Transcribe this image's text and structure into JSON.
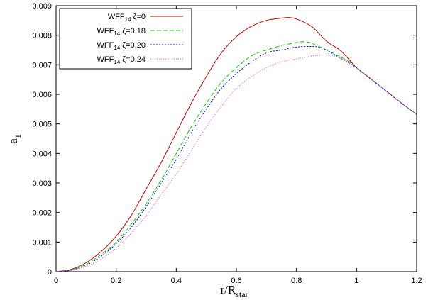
{
  "chart_data": {
    "type": "line",
    "xlabel": {
      "main": "r/R",
      "sub": "star"
    },
    "ylabel": {
      "main": "a",
      "sub": "1"
    },
    "xlim": [
      0,
      1.2
    ],
    "ylim": [
      0,
      0.009
    ],
    "x_ticks": [
      0,
      0.2,
      0.4,
      0.6,
      0.8,
      1,
      1.2
    ],
    "x_tick_labels": [
      "0",
      "0.2",
      "0.4",
      "0.6",
      "0.8",
      "1",
      "1.2"
    ],
    "y_ticks": [
      0,
      0.001,
      0.002,
      0.003,
      0.004,
      0.005,
      0.006,
      0.007,
      0.008,
      0.009
    ],
    "y_tick_labels": [
      "0",
      "0.001",
      "0.002",
      "0.003",
      "0.004",
      "0.005",
      "0.006",
      "0.007",
      "0.008",
      "0.009"
    ],
    "grid": false,
    "legend_position": "top-left",
    "series": [
      {
        "name": {
          "prefix": "WFF",
          "sub": "14",
          "suffix": " ζ=0"
        },
        "color": "#cc0000",
        "dash": "solid",
        "x": [
          0,
          0.05,
          0.1,
          0.15,
          0.2,
          0.25,
          0.3,
          0.35,
          0.4,
          0.45,
          0.5,
          0.55,
          0.6,
          0.65,
          0.7,
          0.75,
          0.775,
          0.8,
          0.85,
          0.9,
          0.95,
          1.0,
          1.05,
          1.1,
          1.15,
          1.2
        ],
        "y": [
          0,
          8e-05,
          0.0003,
          0.00068,
          0.0012,
          0.0019,
          0.0028,
          0.0037,
          0.0047,
          0.0057,
          0.0066,
          0.0074,
          0.00795,
          0.0083,
          0.0085,
          0.00858,
          0.0086,
          0.00855,
          0.0083,
          0.0078,
          0.00745,
          0.0069,
          0.0065,
          0.0061,
          0.0057,
          0.00532
        ]
      },
      {
        "name": {
          "prefix": "WFF",
          "sub": "14",
          "suffix": " ζ=0.18"
        },
        "color": "#00cc00",
        "dash": "6,3",
        "x": [
          0,
          0.05,
          0.1,
          0.15,
          0.2,
          0.25,
          0.3,
          0.35,
          0.4,
          0.45,
          0.5,
          0.55,
          0.6,
          0.65,
          0.7,
          0.75,
          0.8,
          0.825,
          0.85,
          0.9,
          0.95,
          0.975,
          1.0,
          1.05,
          1.1,
          1.15,
          1.2
        ],
        "y": [
          0,
          6e-05,
          0.00025,
          0.00058,
          0.001,
          0.0016,
          0.0023,
          0.0031,
          0.004,
          0.0049,
          0.0057,
          0.0064,
          0.0069,
          0.0073,
          0.0075,
          0.00765,
          0.00775,
          0.00778,
          0.00773,
          0.0075,
          0.00725,
          0.0071,
          0.0069,
          0.0065,
          0.0061,
          0.0057,
          0.00532
        ]
      },
      {
        "name": {
          "prefix": "WFF",
          "sub": "14",
          "suffix": " ζ=0.20"
        },
        "color": "#0000cc",
        "dash": "2,2",
        "x": [
          0,
          0.05,
          0.1,
          0.15,
          0.2,
          0.25,
          0.3,
          0.35,
          0.4,
          0.45,
          0.5,
          0.55,
          0.6,
          0.65,
          0.7,
          0.75,
          0.8,
          0.85,
          0.875,
          0.9,
          0.95,
          1.0,
          1.05,
          1.1,
          1.15,
          1.2
        ],
        "y": [
          0,
          5e-05,
          0.00022,
          0.00052,
          0.00095,
          0.0015,
          0.0022,
          0.003,
          0.0038,
          0.0047,
          0.0055,
          0.0062,
          0.0067,
          0.0071,
          0.0074,
          0.0075,
          0.0076,
          0.00762,
          0.0076,
          0.0075,
          0.0072,
          0.0069,
          0.0065,
          0.0061,
          0.0057,
          0.00532
        ]
      },
      {
        "name": {
          "prefix": "WFF",
          "sub": "14",
          "suffix": " ζ=0.24"
        },
        "color": "#ff33ff",
        "dash": "1,2",
        "x": [
          0,
          0.05,
          0.1,
          0.15,
          0.2,
          0.25,
          0.3,
          0.35,
          0.4,
          0.45,
          0.5,
          0.55,
          0.6,
          0.65,
          0.7,
          0.75,
          0.8,
          0.85,
          0.9,
          0.925,
          0.95,
          1.0,
          1.05,
          1.1,
          1.15,
          1.2
        ],
        "y": [
          0,
          4e-05,
          0.00018,
          0.00043,
          0.0008,
          0.0013,
          0.0019,
          0.0026,
          0.0033,
          0.0041,
          0.0049,
          0.0056,
          0.0062,
          0.0066,
          0.0069,
          0.0071,
          0.0072,
          0.0073,
          0.00733,
          0.0073,
          0.0072,
          0.0069,
          0.0065,
          0.0061,
          0.0057,
          0.00532
        ]
      }
    ]
  }
}
